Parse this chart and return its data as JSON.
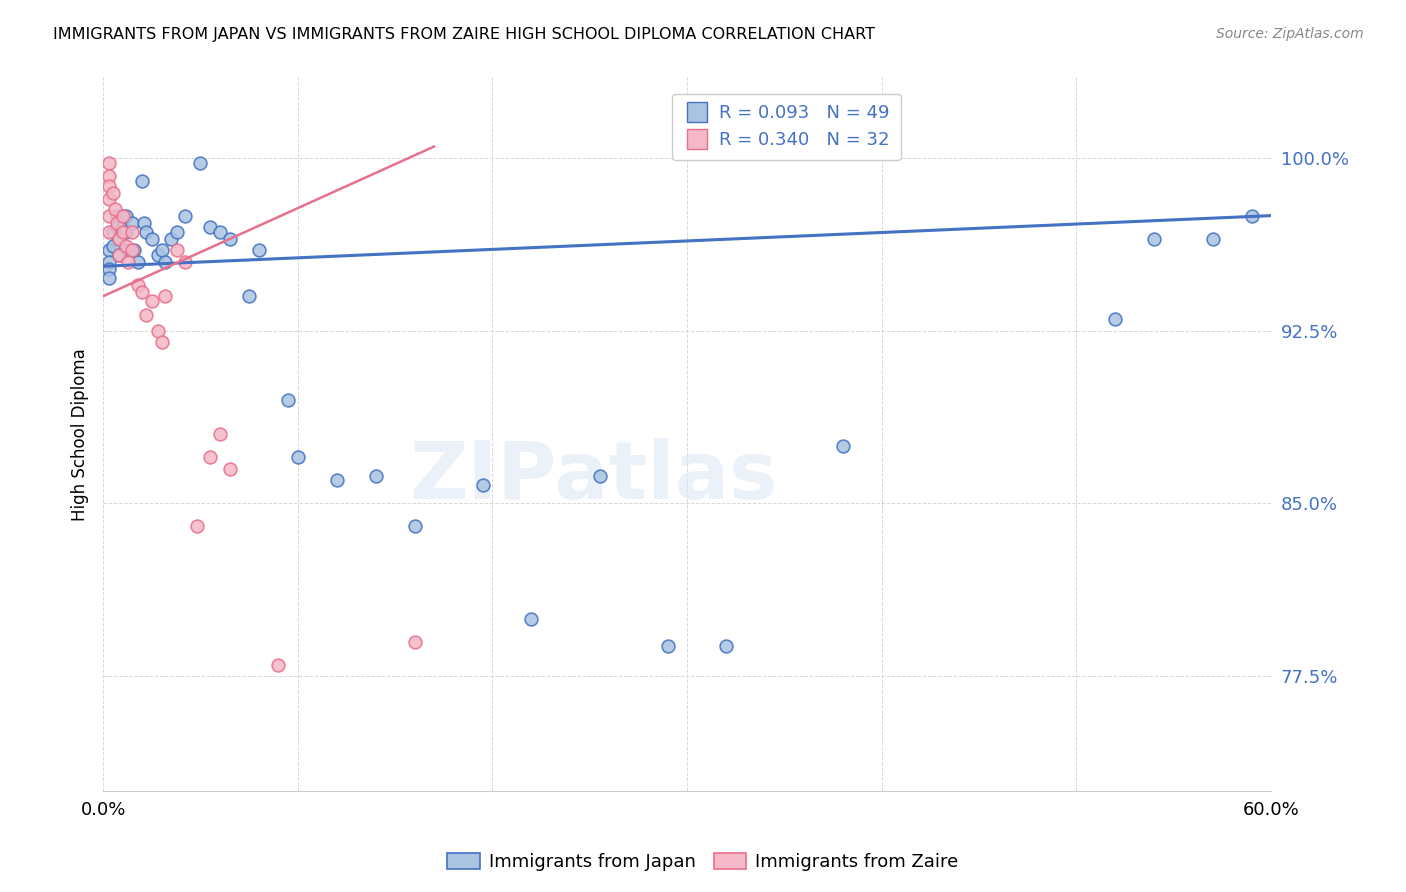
{
  "title": "IMMIGRANTS FROM JAPAN VS IMMIGRANTS FROM ZAIRE HIGH SCHOOL DIPLOMA CORRELATION CHART",
  "source": "Source: ZipAtlas.com",
  "ylabel": "High School Diploma",
  "ytick_labels": [
    "100.0%",
    "92.5%",
    "85.0%",
    "77.5%"
  ],
  "ytick_values": [
    1.0,
    0.925,
    0.85,
    0.775
  ],
  "xlim": [
    0.0,
    0.6
  ],
  "ylim": [
    0.725,
    1.035
  ],
  "legend_japan": "Immigrants from Japan",
  "legend_zaire": "Immigrants from Zaire",
  "R_japan": "R = 0.093",
  "N_japan": "N = 49",
  "R_zaire": "R = 0.340",
  "N_zaire": "N = 32",
  "color_japan": "#a8c4e0",
  "color_zaire": "#f4b8c8",
  "color_japan_line": "#4472c4",
  "color_zaire_line": "#e8708a",
  "color_text_blue": "#4472c4",
  "japan_x": [
    0.003,
    0.003,
    0.003,
    0.003,
    0.005,
    0.005,
    0.007,
    0.007,
    0.008,
    0.008,
    0.01,
    0.01,
    0.012,
    0.012,
    0.013,
    0.015,
    0.016,
    0.018,
    0.02,
    0.021,
    0.022,
    0.025,
    0.028,
    0.03,
    0.032,
    0.035,
    0.038,
    0.042,
    0.05,
    0.055,
    0.06,
    0.065,
    0.075,
    0.08,
    0.095,
    0.1,
    0.12,
    0.14,
    0.16,
    0.195,
    0.22,
    0.255,
    0.29,
    0.32,
    0.38,
    0.52,
    0.54,
    0.57,
    0.59
  ],
  "japan_y": [
    0.96,
    0.955,
    0.952,
    0.948,
    0.968,
    0.962,
    0.975,
    0.97,
    0.965,
    0.958,
    0.975,
    0.97,
    0.975,
    0.968,
    0.96,
    0.972,
    0.96,
    0.955,
    0.99,
    0.972,
    0.968,
    0.965,
    0.958,
    0.96,
    0.955,
    0.965,
    0.968,
    0.975,
    0.998,
    0.97,
    0.968,
    0.965,
    0.94,
    0.96,
    0.895,
    0.87,
    0.86,
    0.862,
    0.84,
    0.858,
    0.8,
    0.862,
    0.788,
    0.788,
    0.875,
    0.93,
    0.965,
    0.965,
    0.975
  ],
  "zaire_x": [
    0.003,
    0.003,
    0.003,
    0.003,
    0.003,
    0.003,
    0.005,
    0.006,
    0.007,
    0.008,
    0.008,
    0.01,
    0.01,
    0.012,
    0.013,
    0.015,
    0.015,
    0.018,
    0.02,
    0.022,
    0.025,
    0.028,
    0.03,
    0.032,
    0.038,
    0.042,
    0.048,
    0.055,
    0.06,
    0.065,
    0.09,
    0.16
  ],
  "zaire_y": [
    0.998,
    0.992,
    0.988,
    0.982,
    0.975,
    0.968,
    0.985,
    0.978,
    0.972,
    0.965,
    0.958,
    0.975,
    0.968,
    0.962,
    0.955,
    0.968,
    0.96,
    0.945,
    0.942,
    0.932,
    0.938,
    0.925,
    0.92,
    0.94,
    0.96,
    0.955,
    0.84,
    0.87,
    0.88,
    0.865,
    0.78,
    0.79
  ],
  "japan_line_x": [
    0.0,
    0.6
  ],
  "japan_line_y": [
    0.953,
    0.975
  ],
  "zaire_line_x": [
    0.0,
    0.17
  ],
  "zaire_line_y": [
    0.94,
    1.005
  ],
  "watermark": "ZIPatlas",
  "background_color": "#ffffff",
  "grid_color": "#d8d8d8"
}
